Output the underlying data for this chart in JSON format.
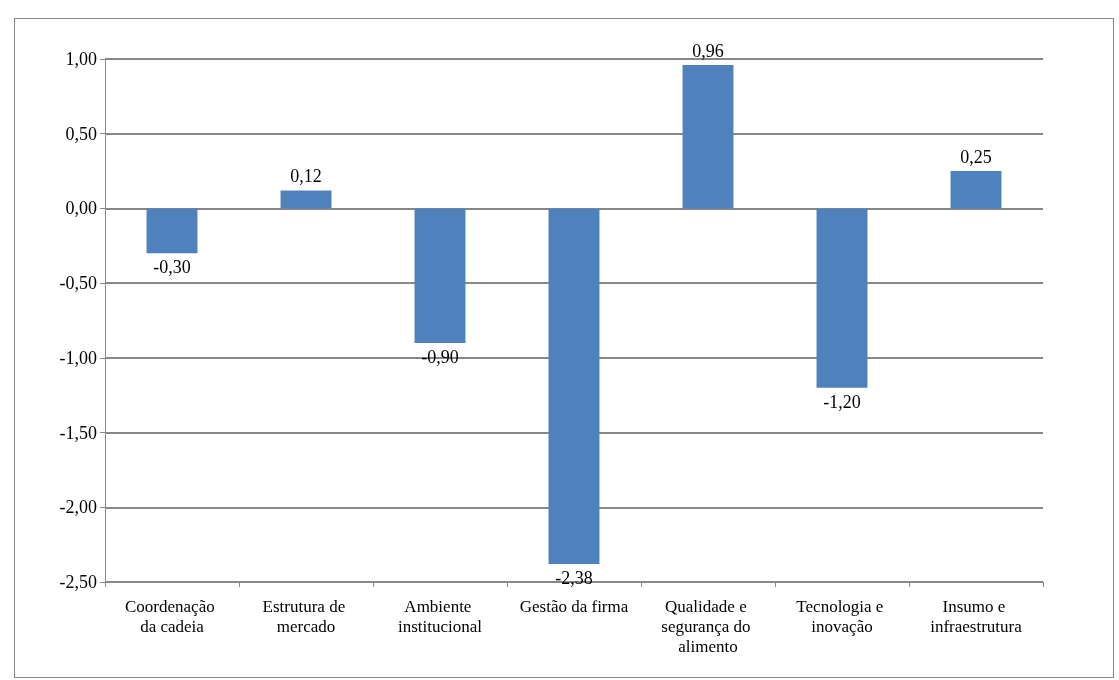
{
  "chart_data": {
    "type": "bar",
    "categories": [
      "Coordenação da cadeia",
      "Estrutura de mercado",
      "Ambiente institucional",
      "Gestão da firma",
      "Qualidade e segurança do alimento",
      "Tecnologia e inovação",
      "Insumo e infraestrutura"
    ],
    "values": [
      -0.3,
      0.12,
      -0.9,
      -2.38,
      0.96,
      -1.2,
      0.25
    ],
    "value_labels": [
      "-0,30",
      "0,12",
      "-0,90",
      "-2,38",
      "0,96",
      "-1,20",
      "0,25"
    ],
    "color": "#4f81bd",
    "ylim": [
      -2.5,
      1
    ],
    "yticks": [
      {
        "value": -2.5,
        "label": "-2,50"
      },
      {
        "value": -2,
        "label": "-2,00"
      },
      {
        "value": -1.5,
        "label": "-1,50"
      },
      {
        "value": -1,
        "label": "-1,00"
      },
      {
        "value": -0.5,
        "label": "-0,50"
      },
      {
        "value": 0,
        "label": "0,00"
      },
      {
        "value": 0.5,
        "label": "0,50"
      },
      {
        "value": 1,
        "label": "1,00"
      }
    ],
    "grid": "y"
  }
}
